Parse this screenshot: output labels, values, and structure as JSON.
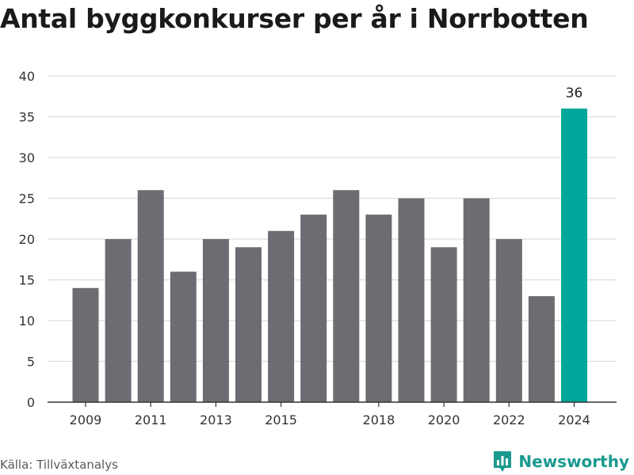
{
  "title": "Antal byggkonkurser per år i Norrbotten",
  "source": "Källa: Tillväxtanalys",
  "brand": {
    "name": "Newsworthy",
    "icon": "newsworthy-logo-icon",
    "color": "#1a9a8e"
  },
  "colors": {
    "bar": "#6d6c72",
    "highlight": "#00a69a",
    "grid": "#dcdcdc",
    "axis": "#333333",
    "text": "#333333"
  },
  "chart_data": {
    "type": "bar",
    "title": "Antal byggkonkurser per år i Norrbotten",
    "xlabel": "",
    "ylabel": "",
    "categories": [
      "2009",
      "2010",
      "2011",
      "2012",
      "2013",
      "2014",
      "2015",
      "2016",
      "2017",
      "2018",
      "2019",
      "2020",
      "2021",
      "2022",
      "2023",
      "2024"
    ],
    "values": [
      14,
      20,
      26,
      16,
      20,
      19,
      21,
      23,
      26,
      23,
      25,
      19,
      25,
      20,
      13,
      36
    ],
    "highlight_index": 15,
    "data_labels": [
      {
        "index": 15,
        "text": "36"
      }
    ],
    "x_tick_labels": [
      {
        "category": "2009",
        "label": "2009"
      },
      {
        "category": "2011",
        "label": "2011"
      },
      {
        "category": "2013",
        "label": "2013"
      },
      {
        "category": "2015",
        "label": "2015"
      },
      {
        "category": "2018",
        "label": "2018"
      },
      {
        "category": "2020",
        "label": "2020"
      },
      {
        "category": "2022",
        "label": "2022"
      },
      {
        "category": "2024",
        "label": "2024"
      }
    ],
    "yticks": [
      0,
      5,
      10,
      15,
      20,
      25,
      30,
      35,
      40
    ],
    "ylim": [
      0,
      40
    ],
    "grid": true,
    "legend": "none"
  }
}
